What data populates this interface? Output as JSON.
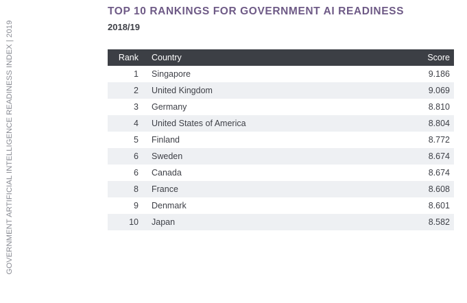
{
  "side_label": "GOVERNMENT ARTIFICIAL INTELLIGENCE READINESS INDEX | 2019",
  "title": "TOP 10 RANKINGS FOR GOVERNMENT AI READINESS",
  "subtitle": "2018/19",
  "table": {
    "headers": {
      "rank": "Rank",
      "country": "Country",
      "score": "Score"
    },
    "rows": [
      {
        "rank": "1",
        "country": "Singapore",
        "score": "9.186"
      },
      {
        "rank": "2",
        "country": "United Kingdom",
        "score": "9.069"
      },
      {
        "rank": "3",
        "country": "Germany",
        "score": "8.810"
      },
      {
        "rank": "4",
        "country": "United States of America",
        "score": "8.804"
      },
      {
        "rank": "5",
        "country": "Finland",
        "score": "8.772"
      },
      {
        "rank": "6",
        "country": "Sweden",
        "score": "8.674"
      },
      {
        "rank": "6",
        "country": "Canada",
        "score": "8.674"
      },
      {
        "rank": "8",
        "country": "France",
        "score": "8.608"
      },
      {
        "rank": "9",
        "country": "Denmark",
        "score": "8.601"
      },
      {
        "rank": "10",
        "country": "Japan",
        "score": "8.582"
      }
    ]
  }
}
